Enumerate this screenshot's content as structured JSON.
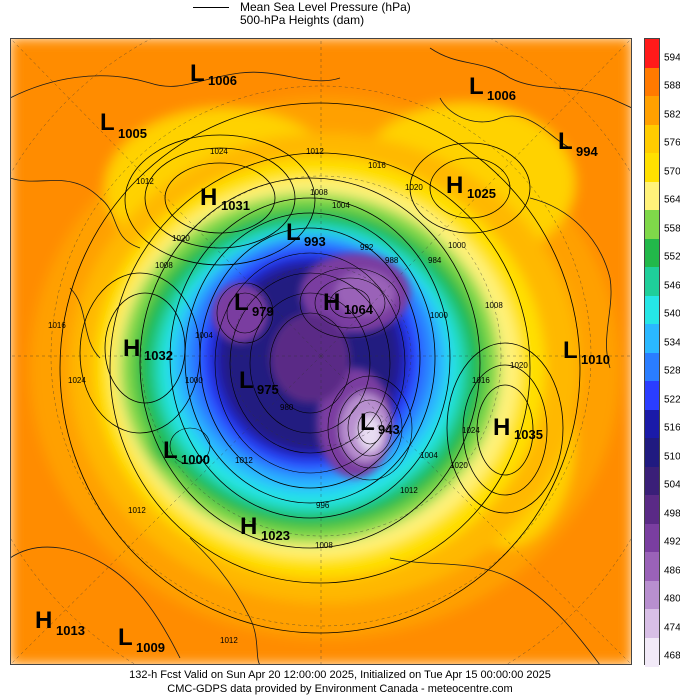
{
  "legend": {
    "line1": "Mean Sea Level Pressure (hPa)",
    "line2": "500-hPa Heights (dam)"
  },
  "colorbar": {
    "ticks": [
      "594",
      "588",
      "582",
      "576",
      "570",
      "564",
      "558",
      "552",
      "546",
      "540",
      "534",
      "528",
      "522",
      "516",
      "510",
      "504",
      "498",
      "492",
      "486",
      "480",
      "474",
      "468"
    ],
    "colors": [
      "#ff1a1a",
      "#ff7a00",
      "#ffa000",
      "#ffcc00",
      "#ffe000",
      "#fff27a",
      "#7fd84a",
      "#22b84a",
      "#1fcf9a",
      "#25e6e6",
      "#2ab8ff",
      "#2a7dff",
      "#2a3dff",
      "#1a1aa8",
      "#201a80",
      "#3a1f78",
      "#5a2a86",
      "#7a3ea0",
      "#9a62b8",
      "#b88fcf",
      "#d8bfe6",
      "#f2eaf8"
    ]
  },
  "systems": [
    {
      "type": "L",
      "value": "1006"
    },
    {
      "type": "L",
      "value": "1006"
    },
    {
      "type": "L",
      "value": "1005"
    },
    {
      "type": "L",
      "value": "994"
    },
    {
      "type": "H",
      "value": "1031"
    },
    {
      "type": "H",
      "value": "1025"
    },
    {
      "type": "L",
      "value": "993"
    },
    {
      "type": "L",
      "value": "979"
    },
    {
      "type": "H",
      "value": "1064"
    },
    {
      "type": "H",
      "value": "1032"
    },
    {
      "type": "L",
      "value": "1010"
    },
    {
      "type": "L",
      "value": "975"
    },
    {
      "type": "L",
      "value": "943"
    },
    {
      "type": "H",
      "value": "1035"
    },
    {
      "type": "L",
      "value": "1000"
    },
    {
      "type": "H",
      "value": "1023"
    },
    {
      "type": "H",
      "value": "1013"
    },
    {
      "type": "L",
      "value": "1009"
    }
  ],
  "isobar_labels": [
    "1024",
    "1012",
    "1016",
    "1020",
    "1008",
    "1004",
    "1000",
    "996",
    "992",
    "988",
    "984",
    "980"
  ],
  "footer": {
    "line1": "132-h Fcst Valid on Sun Apr 20 12:00:00 2025, Initialized on Tue Apr 15 00:00:00 2025",
    "line2": "CMC-GDPS data provided by Environment Canada - meteocentre.com"
  }
}
